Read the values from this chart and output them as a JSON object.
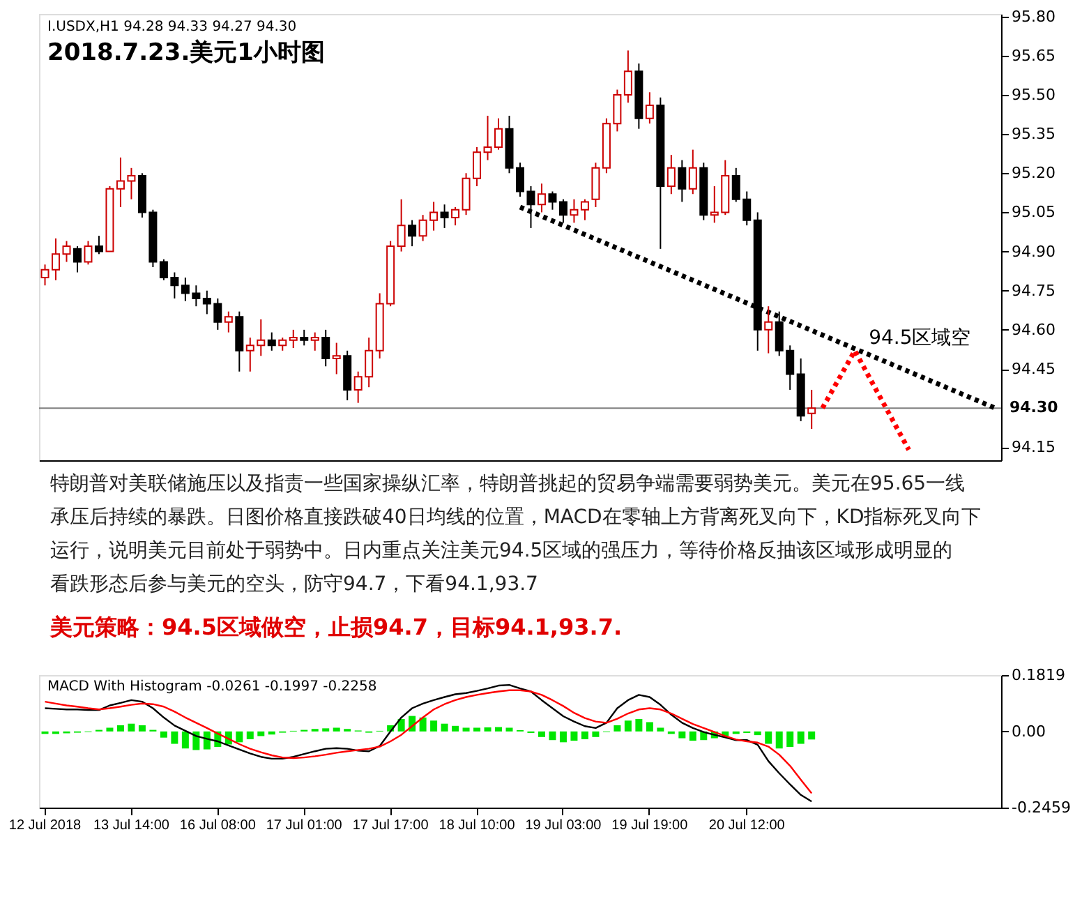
{
  "chart_data": [
    {
      "type": "candlestick",
      "title": "2018.7.23.美元1小时图",
      "annotations": [
        "I.USDX,H1  94.28 94.33 94.27 94.30",
        "特朗普对美联储施压以及指责一些国家操纵汇率，特朗普挑起的贸易争端需要弱势美元。美元在95.65一线承压后持续的暴跌。日图价格直接跌破40日均线的位置，MACD在零轴上方背离死叉向下，KD指标死叉向下运行，说明美元目前处于弱势中。日内重点关注美元94.5区域的强压力，等待价格反抽该区域形成明显的看跌形态后参与美元的空头，防守94.7，下看94.1,93.7",
        "美元策略：94.5区域做空，止损94.7，目标94.1,93.7.",
        "94.5区域空"
      ],
      "categories": [
        null,
        null,
        null,
        null,
        null,
        null,
        null,
        null,
        null,
        null,
        null,
        null,
        null,
        null,
        null,
        null,
        null,
        null,
        null,
        null,
        null,
        null,
        null,
        null,
        null,
        null,
        null,
        null,
        null,
        null,
        null,
        null,
        null,
        null,
        null,
        null,
        null,
        null,
        null,
        null,
        null,
        null,
        null,
        null,
        null,
        null,
        null,
        null,
        null,
        null,
        null,
        null,
        null,
        null,
        null,
        null,
        null,
        null,
        null,
        null,
        null,
        null,
        null,
        null,
        null,
        null,
        null,
        null,
        null,
        null,
        null,
        null,
        null,
        null,
        null,
        null,
        null,
        null,
        null,
        null,
        null,
        null,
        null,
        null,
        null,
        null,
        null,
        null,
        null
      ],
      "ohlc": [
        [
          94.8,
          94.85,
          94.77,
          94.83
        ],
        [
          94.83,
          94.95,
          94.79,
          94.89
        ],
        [
          94.89,
          94.94,
          94.86,
          94.92
        ],
        [
          94.91,
          94.92,
          94.82,
          94.86
        ],
        [
          94.86,
          94.94,
          94.85,
          94.92
        ],
        [
          94.92,
          94.96,
          94.89,
          94.9
        ],
        [
          94.9,
          95.15,
          94.9,
          95.14
        ],
        [
          95.14,
          95.26,
          95.07,
          95.17
        ],
        [
          95.17,
          95.22,
          95.1,
          95.19
        ],
        [
          95.19,
          95.2,
          95.03,
          95.05
        ],
        [
          95.05,
          95.06,
          94.84,
          94.86
        ],
        [
          94.86,
          94.87,
          94.79,
          94.8
        ],
        [
          94.8,
          94.82,
          94.72,
          94.77
        ],
        [
          94.77,
          94.8,
          94.71,
          94.74
        ],
        [
          94.74,
          94.77,
          94.69,
          94.72
        ],
        [
          94.72,
          94.75,
          94.66,
          94.7
        ],
        [
          94.7,
          94.72,
          94.6,
          94.63
        ],
        [
          94.63,
          94.67,
          94.59,
          94.65
        ],
        [
          94.65,
          94.67,
          94.44,
          94.52
        ],
        [
          94.52,
          94.57,
          94.44,
          94.54
        ],
        [
          94.54,
          94.64,
          94.5,
          94.56
        ],
        [
          94.56,
          94.59,
          94.52,
          94.54
        ],
        [
          94.54,
          94.57,
          94.52,
          94.56
        ],
        [
          94.56,
          94.6,
          94.53,
          94.57
        ],
        [
          94.57,
          94.6,
          94.54,
          94.56
        ],
        [
          94.56,
          94.59,
          94.52,
          94.57
        ],
        [
          94.57,
          94.6,
          94.46,
          94.49
        ],
        [
          94.49,
          94.55,
          94.43,
          94.5
        ],
        [
          94.5,
          94.52,
          94.33,
          94.37
        ],
        [
          94.37,
          94.44,
          94.32,
          94.42
        ],
        [
          94.42,
          94.57,
          94.38,
          94.52
        ],
        [
          94.52,
          94.74,
          94.49,
          94.7
        ],
        [
          94.7,
          94.94,
          94.69,
          94.92
        ],
        [
          94.92,
          95.1,
          94.9,
          95.0
        ],
        [
          95.0,
          95.02,
          94.92,
          94.96
        ],
        [
          94.96,
          95.04,
          94.94,
          95.02
        ],
        [
          95.02,
          95.09,
          94.98,
          95.05
        ],
        [
          95.05,
          95.08,
          94.99,
          95.03
        ],
        [
          95.03,
          95.07,
          95.0,
          95.06
        ],
        [
          95.06,
          95.2,
          95.04,
          95.18
        ],
        [
          95.18,
          95.3,
          95.15,
          95.28
        ],
        [
          95.28,
          95.42,
          95.25,
          95.3
        ],
        [
          95.3,
          95.41,
          95.29,
          95.37
        ],
        [
          95.37,
          95.42,
          95.2,
          95.22
        ],
        [
          95.22,
          95.24,
          95.11,
          95.13
        ],
        [
          95.13,
          95.15,
          94.99,
          95.08
        ],
        [
          95.08,
          95.16,
          95.05,
          95.12
        ],
        [
          95.12,
          95.13,
          95.06,
          95.09
        ],
        [
          95.09,
          95.1,
          95.01,
          95.04
        ],
        [
          95.04,
          95.1,
          95.01,
          95.06
        ],
        [
          95.06,
          95.1,
          95.02,
          95.09
        ],
        [
          95.1,
          95.24,
          95.07,
          95.22
        ],
        [
          95.22,
          95.41,
          95.2,
          95.39
        ],
        [
          95.39,
          95.52,
          95.36,
          95.5
        ],
        [
          95.5,
          95.67,
          95.47,
          95.59
        ],
        [
          95.59,
          95.62,
          95.37,
          95.41
        ],
        [
          95.41,
          95.51,
          95.39,
          95.46
        ],
        [
          95.46,
          95.49,
          94.91,
          95.15
        ],
        [
          95.15,
          95.27,
          95.12,
          95.22
        ],
        [
          95.22,
          95.25,
          95.09,
          95.14
        ],
        [
          95.14,
          95.29,
          95.12,
          95.22
        ],
        [
          95.22,
          95.24,
          95.02,
          95.04
        ],
        [
          95.04,
          95.15,
          95.01,
          95.05
        ],
        [
          95.05,
          95.25,
          95.04,
          95.19
        ],
        [
          95.19,
          95.22,
          95.09,
          95.1
        ],
        [
          95.1,
          95.13,
          95.0,
          95.02
        ],
        [
          95.02,
          95.05,
          94.52,
          94.6
        ],
        [
          94.6,
          94.69,
          94.51,
          94.63
        ],
        [
          94.63,
          94.67,
          94.5,
          94.52
        ],
        [
          94.52,
          94.54,
          94.37,
          94.43
        ],
        [
          94.43,
          94.49,
          94.25,
          94.27
        ],
        [
          94.28,
          94.37,
          94.22,
          94.3
        ],
        null,
        null,
        null,
        null,
        null,
        null,
        null,
        null,
        null,
        null,
        null,
        null,
        null,
        null,
        null,
        null,
        null
      ],
      "series": [
        {
          "type": "line",
          "color": "#000000",
          "line_style": "dotted",
          "values": [
            null,
            null,
            null,
            null,
            null,
            null,
            null,
            null,
            null,
            null,
            null,
            null,
            null,
            null,
            null,
            null,
            null,
            null,
            null,
            null,
            null,
            null,
            null,
            null,
            null,
            null,
            null,
            null,
            null,
            null,
            null,
            null,
            null,
            null,
            null,
            null,
            null,
            null,
            null,
            null,
            null,
            null,
            null,
            null,
            95.07,
            null,
            null,
            null,
            null,
            null,
            null,
            null,
            null,
            null,
            null,
            null,
            null,
            null,
            null,
            null,
            null,
            null,
            null,
            null,
            null,
            null,
            null,
            null,
            null,
            null,
            null,
            null,
            null,
            null,
            null,
            null,
            null,
            null,
            null,
            null,
            null,
            null,
            null,
            null,
            null,
            null,
            null,
            null,
            94.3
          ]
        },
        {
          "type": "line",
          "color": "#ff0000",
          "line_style": "dotted",
          "values": [
            null,
            null,
            null,
            null,
            null,
            null,
            null,
            null,
            null,
            null,
            null,
            null,
            null,
            null,
            null,
            null,
            null,
            null,
            null,
            null,
            null,
            null,
            null,
            null,
            null,
            null,
            null,
            null,
            null,
            null,
            null,
            null,
            null,
            null,
            null,
            null,
            null,
            null,
            null,
            null,
            null,
            null,
            null,
            null,
            null,
            null,
            null,
            null,
            null,
            null,
            null,
            null,
            null,
            null,
            null,
            null,
            null,
            null,
            null,
            null,
            null,
            null,
            null,
            null,
            null,
            null,
            null,
            null,
            null,
            null,
            null,
            null,
            94.3,
            null,
            null,
            94.52,
            null,
            null,
            null,
            null,
            94.14,
            null,
            null,
            null,
            null,
            null,
            null,
            null,
            null
          ]
        }
      ],
      "ylim": [
        94.1,
        95.81
      ],
      "yticks": [
        {
          "value": 95.8,
          "label": "95.80"
        },
        95.65,
        {
          "value": 95.5,
          "label": "95.50"
        },
        95.35,
        {
          "value": 95.2,
          "label": "95.20"
        },
        95.05,
        {
          "value": 94.9,
          "label": "94.90"
        },
        94.75,
        {
          "value": 94.6,
          "label": "94.60"
        },
        94.45,
        94.15
      ],
      "ref_lines": [
        {
          "axis": "y",
          "value": 94.3,
          "label": "94.30",
          "color": "#808080"
        }
      ],
      "tick_labels": "y"
    },
    {
      "type": "bar",
      "title": "MACD With Histogram -0.0261 -0.1997 -0.2258",
      "categories": [
        "12 Jul 2018",
        null,
        null,
        null,
        null,
        null,
        null,
        null,
        "13 Jul 14:00",
        null,
        null,
        null,
        null,
        null,
        null,
        null,
        "16 Jul 08:00",
        null,
        null,
        null,
        null,
        null,
        null,
        null,
        "17 Jul 01:00",
        null,
        null,
        null,
        null,
        null,
        null,
        null,
        "17 Jul 17:00",
        null,
        null,
        null,
        null,
        null,
        null,
        null,
        "18 Jul 10:00",
        null,
        null,
        null,
        null,
        null,
        null,
        null,
        "19 Jul 03:00",
        null,
        null,
        null,
        null,
        null,
        null,
        null,
        "19 Jul 19:00",
        null,
        null,
        null,
        null,
        null,
        null,
        null,
        null,
        "20 Jul 12:00",
        null,
        null,
        null,
        null,
        null,
        null,
        null,
        null,
        null,
        null,
        null,
        null,
        null,
        null,
        null,
        null,
        null,
        null,
        null,
        null,
        null,
        null,
        null
      ],
      "series": [
        {
          "type": "bar",
          "color": "#00e600",
          "values": [
            -0.008,
            -0.008,
            -0.006,
            -0.004,
            -0.002,
            0.005,
            0.012,
            0.02,
            0.025,
            0.02,
            0.005,
            -0.02,
            -0.04,
            -0.055,
            -0.06,
            -0.058,
            -0.05,
            -0.042,
            -0.035,
            -0.025,
            -0.015,
            -0.01,
            -0.004,
            0.002,
            0.005,
            0.008,
            0.01,
            0.012,
            0.008,
            0.003,
            -0.004,
            0.002,
            0.02,
            0.04,
            0.05,
            0.045,
            0.035,
            0.025,
            0.018,
            0.012,
            0.012,
            0.013,
            0.014,
            0.012,
            0.004,
            -0.005,
            -0.018,
            -0.028,
            -0.035,
            -0.03,
            -0.025,
            -0.018,
            -0.002,
            0.02,
            0.035,
            0.04,
            0.03,
            0.012,
            -0.008,
            -0.022,
            -0.03,
            -0.028,
            -0.022,
            -0.015,
            -0.008,
            -0.005,
            -0.012,
            -0.04,
            -0.055,
            -0.05,
            -0.04,
            -0.026,
            null,
            null,
            null,
            null,
            null,
            null,
            null,
            null,
            null,
            null,
            null,
            null,
            null,
            null,
            null,
            null,
            null
          ]
        },
        {
          "type": "line",
          "color": "#000000",
          "values": [
            0.075,
            0.073,
            0.071,
            0.071,
            0.069,
            0.069,
            0.084,
            0.092,
            0.101,
            0.096,
            0.075,
            0.045,
            0.019,
            0.002,
            -0.015,
            -0.024,
            -0.032,
            -0.045,
            -0.058,
            -0.071,
            -0.082,
            -0.088,
            -0.088,
            -0.082,
            -0.073,
            -0.064,
            -0.056,
            -0.054,
            -0.056,
            -0.062,
            -0.064,
            -0.047,
            0,
            0.045,
            0.075,
            0.09,
            0.101,
            0.111,
            0.12,
            0.124,
            0.131,
            0.139,
            0.148,
            0.15,
            0.139,
            0.129,
            0.101,
            0.075,
            0.049,
            0.032,
            0.017,
            0.011,
            0.028,
            0.075,
            0.101,
            0.118,
            0.111,
            0.086,
            0.054,
            0.028,
            0.011,
            -0.002,
            -0.011,
            -0.019,
            -0.028,
            -0.028,
            -0.043,
            -0.096,
            -0.135,
            -0.171,
            -0.205,
            -0.226,
            null,
            null,
            null,
            null,
            null,
            null,
            null,
            null,
            null,
            null,
            null,
            null,
            null,
            null,
            null,
            null,
            null
          ]
        },
        {
          "type": "line",
          "color": "#ff0000",
          "values": [
            0.096,
            0.09,
            0.084,
            0.08,
            0.075,
            0.071,
            0.075,
            0.08,
            0.086,
            0.09,
            0.088,
            0.08,
            0.064,
            0.045,
            0.028,
            0.011,
            -0.007,
            -0.024,
            -0.041,
            -0.056,
            -0.067,
            -0.077,
            -0.084,
            -0.086,
            -0.084,
            -0.08,
            -0.075,
            -0.069,
            -0.064,
            -0.06,
            -0.056,
            -0.049,
            -0.032,
            -0.011,
            0.017,
            0.045,
            0.071,
            0.088,
            0.101,
            0.111,
            0.118,
            0.124,
            0.129,
            0.133,
            0.133,
            0.129,
            0.118,
            0.101,
            0.082,
            0.06,
            0.043,
            0.032,
            0.028,
            0.041,
            0.058,
            0.071,
            0.075,
            0.071,
            0.058,
            0.041,
            0.024,
            0.011,
            -0.002,
            -0.015,
            -0.026,
            -0.032,
            -0.036,
            -0.049,
            -0.075,
            -0.111,
            -0.156,
            -0.2,
            null,
            null,
            null,
            null,
            null,
            null,
            null,
            null,
            null,
            null,
            null,
            null,
            null,
            null,
            null,
            null,
            null
          ]
        }
      ],
      "ylim": [
        -0.2459,
        0.1819
      ],
      "yticks": [
        0.1819,
        {
          "value": 0,
          "label": "0.00"
        },
        -0.2459
      ]
    }
  ]
}
